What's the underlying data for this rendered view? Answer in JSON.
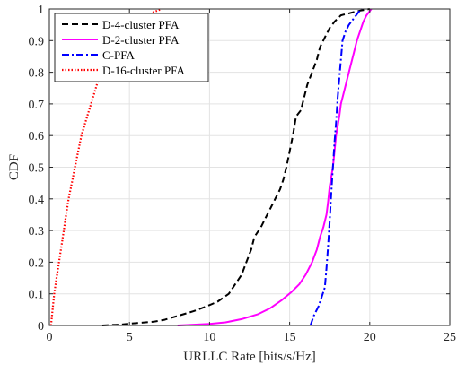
{
  "chart_data": {
    "type": "line",
    "title": "",
    "xlabel": "URLLC Rate [bits/s/Hz]",
    "ylabel": "CDF",
    "xlim": [
      0,
      25
    ],
    "ylim": [
      0,
      1
    ],
    "xticks": [
      0,
      5,
      10,
      15,
      20,
      25
    ],
    "yticks": [
      0,
      0.1,
      0.2,
      0.3,
      0.4,
      0.5,
      0.6,
      0.7,
      0.8,
      0.9,
      1
    ],
    "xtick_labels": [
      "0",
      "5",
      "10",
      "15",
      "20",
      "25"
    ],
    "ytick_labels": [
      "0",
      "0.1",
      "0.2",
      "0.3",
      "0.4",
      "0.5",
      "0.6",
      "0.7",
      "0.8",
      "0.9",
      "1"
    ],
    "grid": true,
    "legend_position": "top-left",
    "series": [
      {
        "name": "D-4-cluster PFA",
        "color": "#000000",
        "dash": "dashed",
        "x": [
          3.3,
          4.5,
          5.5,
          6.5,
          7.2,
          8.0,
          9.0,
          9.8,
          10.5,
          11.2,
          11.6,
          12.0,
          12.3,
          12.6,
          12.8,
          13.2,
          13.5,
          13.8,
          14.1,
          14.4,
          14.6,
          14.8,
          15.0,
          15.2,
          15.4,
          15.7,
          15.9,
          16.1,
          16.4,
          16.7,
          16.9,
          17.2,
          17.5,
          17.8,
          18.2,
          18.6,
          19.0,
          19.4,
          20.0
        ],
        "y": [
          0.0,
          0.003,
          0.008,
          0.012,
          0.018,
          0.03,
          0.045,
          0.06,
          0.075,
          0.1,
          0.13,
          0.16,
          0.2,
          0.24,
          0.28,
          0.31,
          0.34,
          0.37,
          0.4,
          0.43,
          0.46,
          0.5,
          0.55,
          0.6,
          0.66,
          0.68,
          0.72,
          0.76,
          0.8,
          0.84,
          0.88,
          0.91,
          0.94,
          0.96,
          0.98,
          0.985,
          0.99,
          0.995,
          1.0
        ]
      },
      {
        "name": "D-2-cluster PFA",
        "color": "#ff00ff",
        "dash": "solid",
        "x": [
          8.0,
          10.0,
          11.0,
          12.0,
          13.0,
          13.8,
          14.5,
          15.1,
          15.6,
          16.0,
          16.4,
          16.7,
          16.9,
          17.1,
          17.3,
          17.4,
          17.5,
          17.7,
          17.8,
          17.9,
          18.1,
          18.2,
          18.4,
          18.6,
          18.8,
          19.0,
          19.2,
          19.4,
          19.6,
          19.8,
          20.1
        ],
        "y": [
          0.0,
          0.005,
          0.01,
          0.02,
          0.035,
          0.055,
          0.08,
          0.105,
          0.13,
          0.16,
          0.2,
          0.24,
          0.28,
          0.31,
          0.35,
          0.39,
          0.44,
          0.5,
          0.55,
          0.6,
          0.66,
          0.7,
          0.74,
          0.78,
          0.82,
          0.86,
          0.9,
          0.93,
          0.96,
          0.98,
          1.0
        ]
      },
      {
        "name": "C-PFA",
        "color": "#0000ff",
        "dash": "dashdot",
        "x": [
          16.3,
          16.5,
          16.8,
          17.0,
          17.2,
          17.3,
          17.4,
          17.5,
          17.6,
          17.7,
          17.8,
          17.9,
          18.0,
          18.1,
          18.2,
          18.3,
          18.5,
          18.7,
          19.0,
          19.3,
          19.5
        ],
        "y": [
          0.0,
          0.03,
          0.06,
          0.09,
          0.12,
          0.18,
          0.25,
          0.33,
          0.42,
          0.5,
          0.58,
          0.64,
          0.72,
          0.78,
          0.84,
          0.9,
          0.93,
          0.95,
          0.97,
          0.99,
          1.0
        ]
      },
      {
        "name": "D-16-cluster PFA",
        "color": "#ff0000",
        "dash": "dotted",
        "x": [
          0.1,
          0.2,
          0.3,
          0.45,
          0.6,
          0.75,
          0.9,
          1.05,
          1.2,
          1.4,
          1.6,
          1.8,
          2.0,
          2.3,
          2.6,
          2.9,
          3.2,
          3.6,
          4.0,
          4.5,
          5.0,
          5.5,
          6.0,
          6.5,
          7.0
        ],
        "y": [
          0.0,
          0.05,
          0.1,
          0.15,
          0.2,
          0.25,
          0.3,
          0.35,
          0.4,
          0.45,
          0.5,
          0.55,
          0.6,
          0.65,
          0.7,
          0.75,
          0.8,
          0.84,
          0.87,
          0.9,
          0.93,
          0.95,
          0.97,
          0.99,
          1.0
        ]
      }
    ]
  }
}
